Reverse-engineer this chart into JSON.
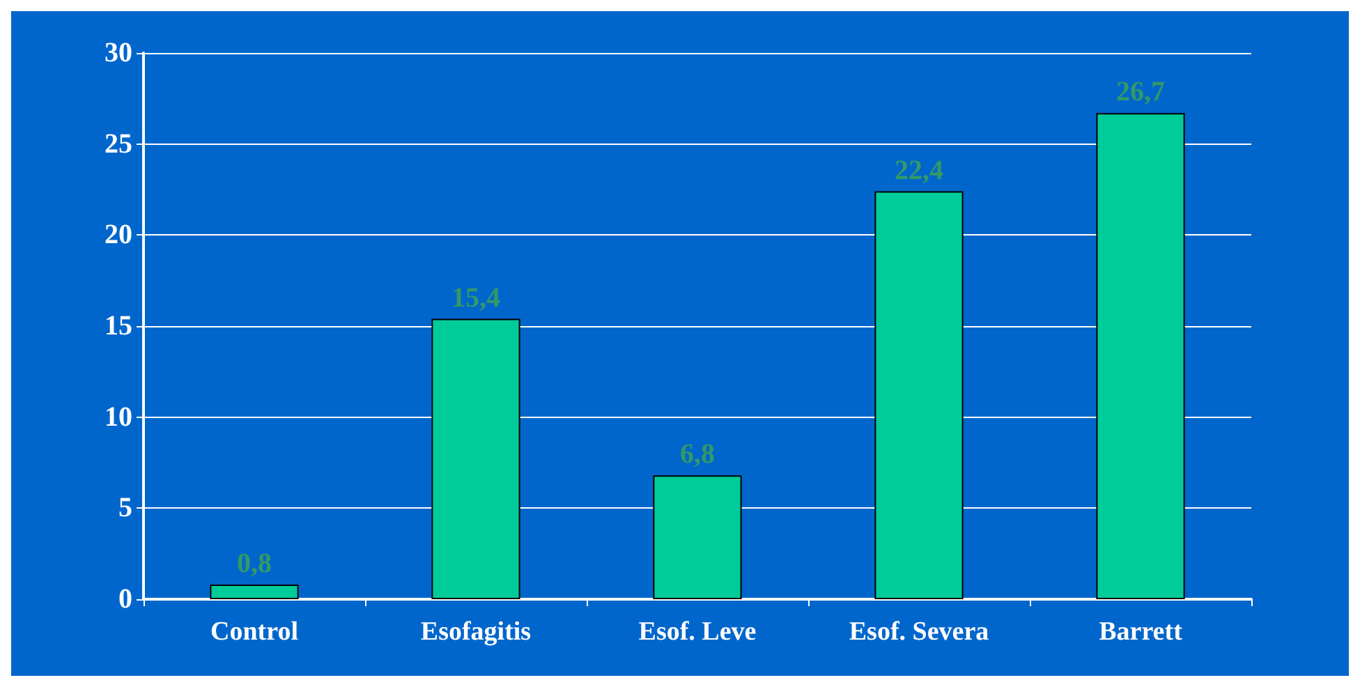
{
  "chart_data": {
    "type": "bar",
    "categories": [
      "Control",
      "Esofagitis",
      "Esof. Leve",
      "Esof. Severa",
      "Barrett"
    ],
    "values": [
      0.8,
      15.4,
      6.8,
      22.4,
      26.7
    ],
    "value_labels": [
      "0,8",
      "15,4",
      "6,8",
      "22,4",
      "26,7"
    ],
    "color": "#00cc99",
    "ylim": [
      0,
      30
    ],
    "yticks": [
      0,
      5,
      10,
      15,
      20,
      25,
      30
    ],
    "grid": "y"
  }
}
